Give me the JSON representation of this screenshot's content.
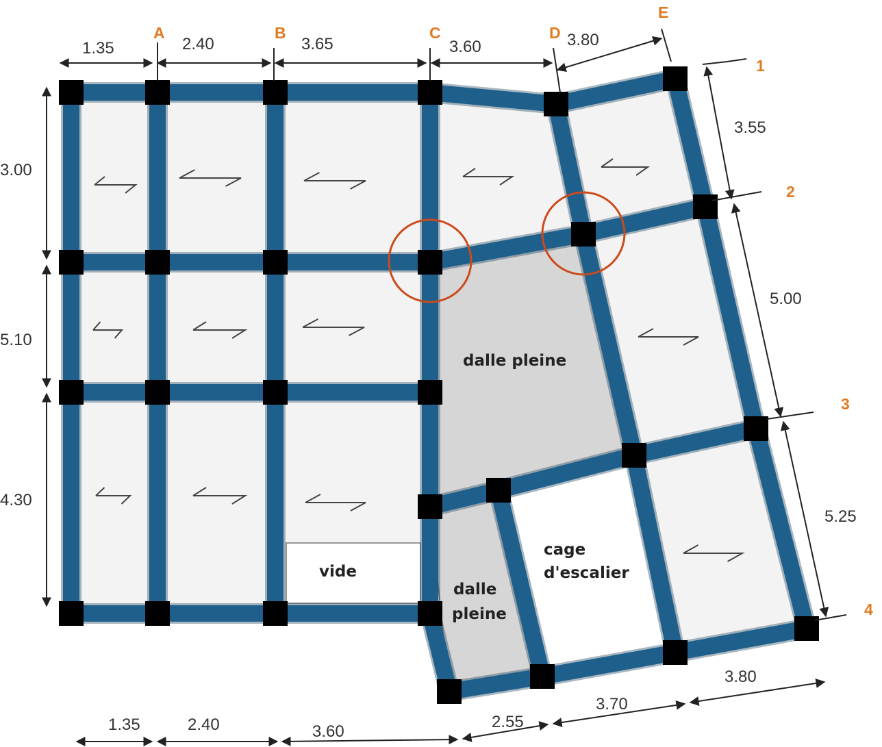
{
  "colors": {
    "beam": "#1f5f8b",
    "beam_edge": "#0d3550",
    "column": "#000000",
    "slab": "#f3f3f3",
    "solid_slab": "#d6d6d6",
    "void": "#ffffff",
    "axis_label": "#e07b22",
    "highlight_circle": "#cc4a1c",
    "dimension": "#333333"
  },
  "axes": {
    "columns": [
      "A",
      "B",
      "C",
      "D",
      "E"
    ],
    "rows": [
      "1",
      "2",
      "3",
      "4"
    ]
  },
  "dimensions": {
    "top": [
      "1.35",
      "2.40",
      "3.65",
      "3.60",
      "3.80"
    ],
    "left": [
      "3.00",
      "5.10",
      "4.30"
    ],
    "right": [
      "3.55",
      "5.00",
      "5.25"
    ],
    "bottom_left": [
      "1.35",
      "2.40",
      "3.60"
    ],
    "bottom_right": [
      "2.55",
      "3.70",
      "3.80"
    ]
  },
  "labels": {
    "solid_slab_main": "dalle pleine",
    "void": "vide",
    "stair_line1": "cage",
    "stair_line2": "d'escalier",
    "solid_slab_small_line1": "dalle",
    "solid_slab_small_line2": "pleine"
  },
  "highlights": 2
}
